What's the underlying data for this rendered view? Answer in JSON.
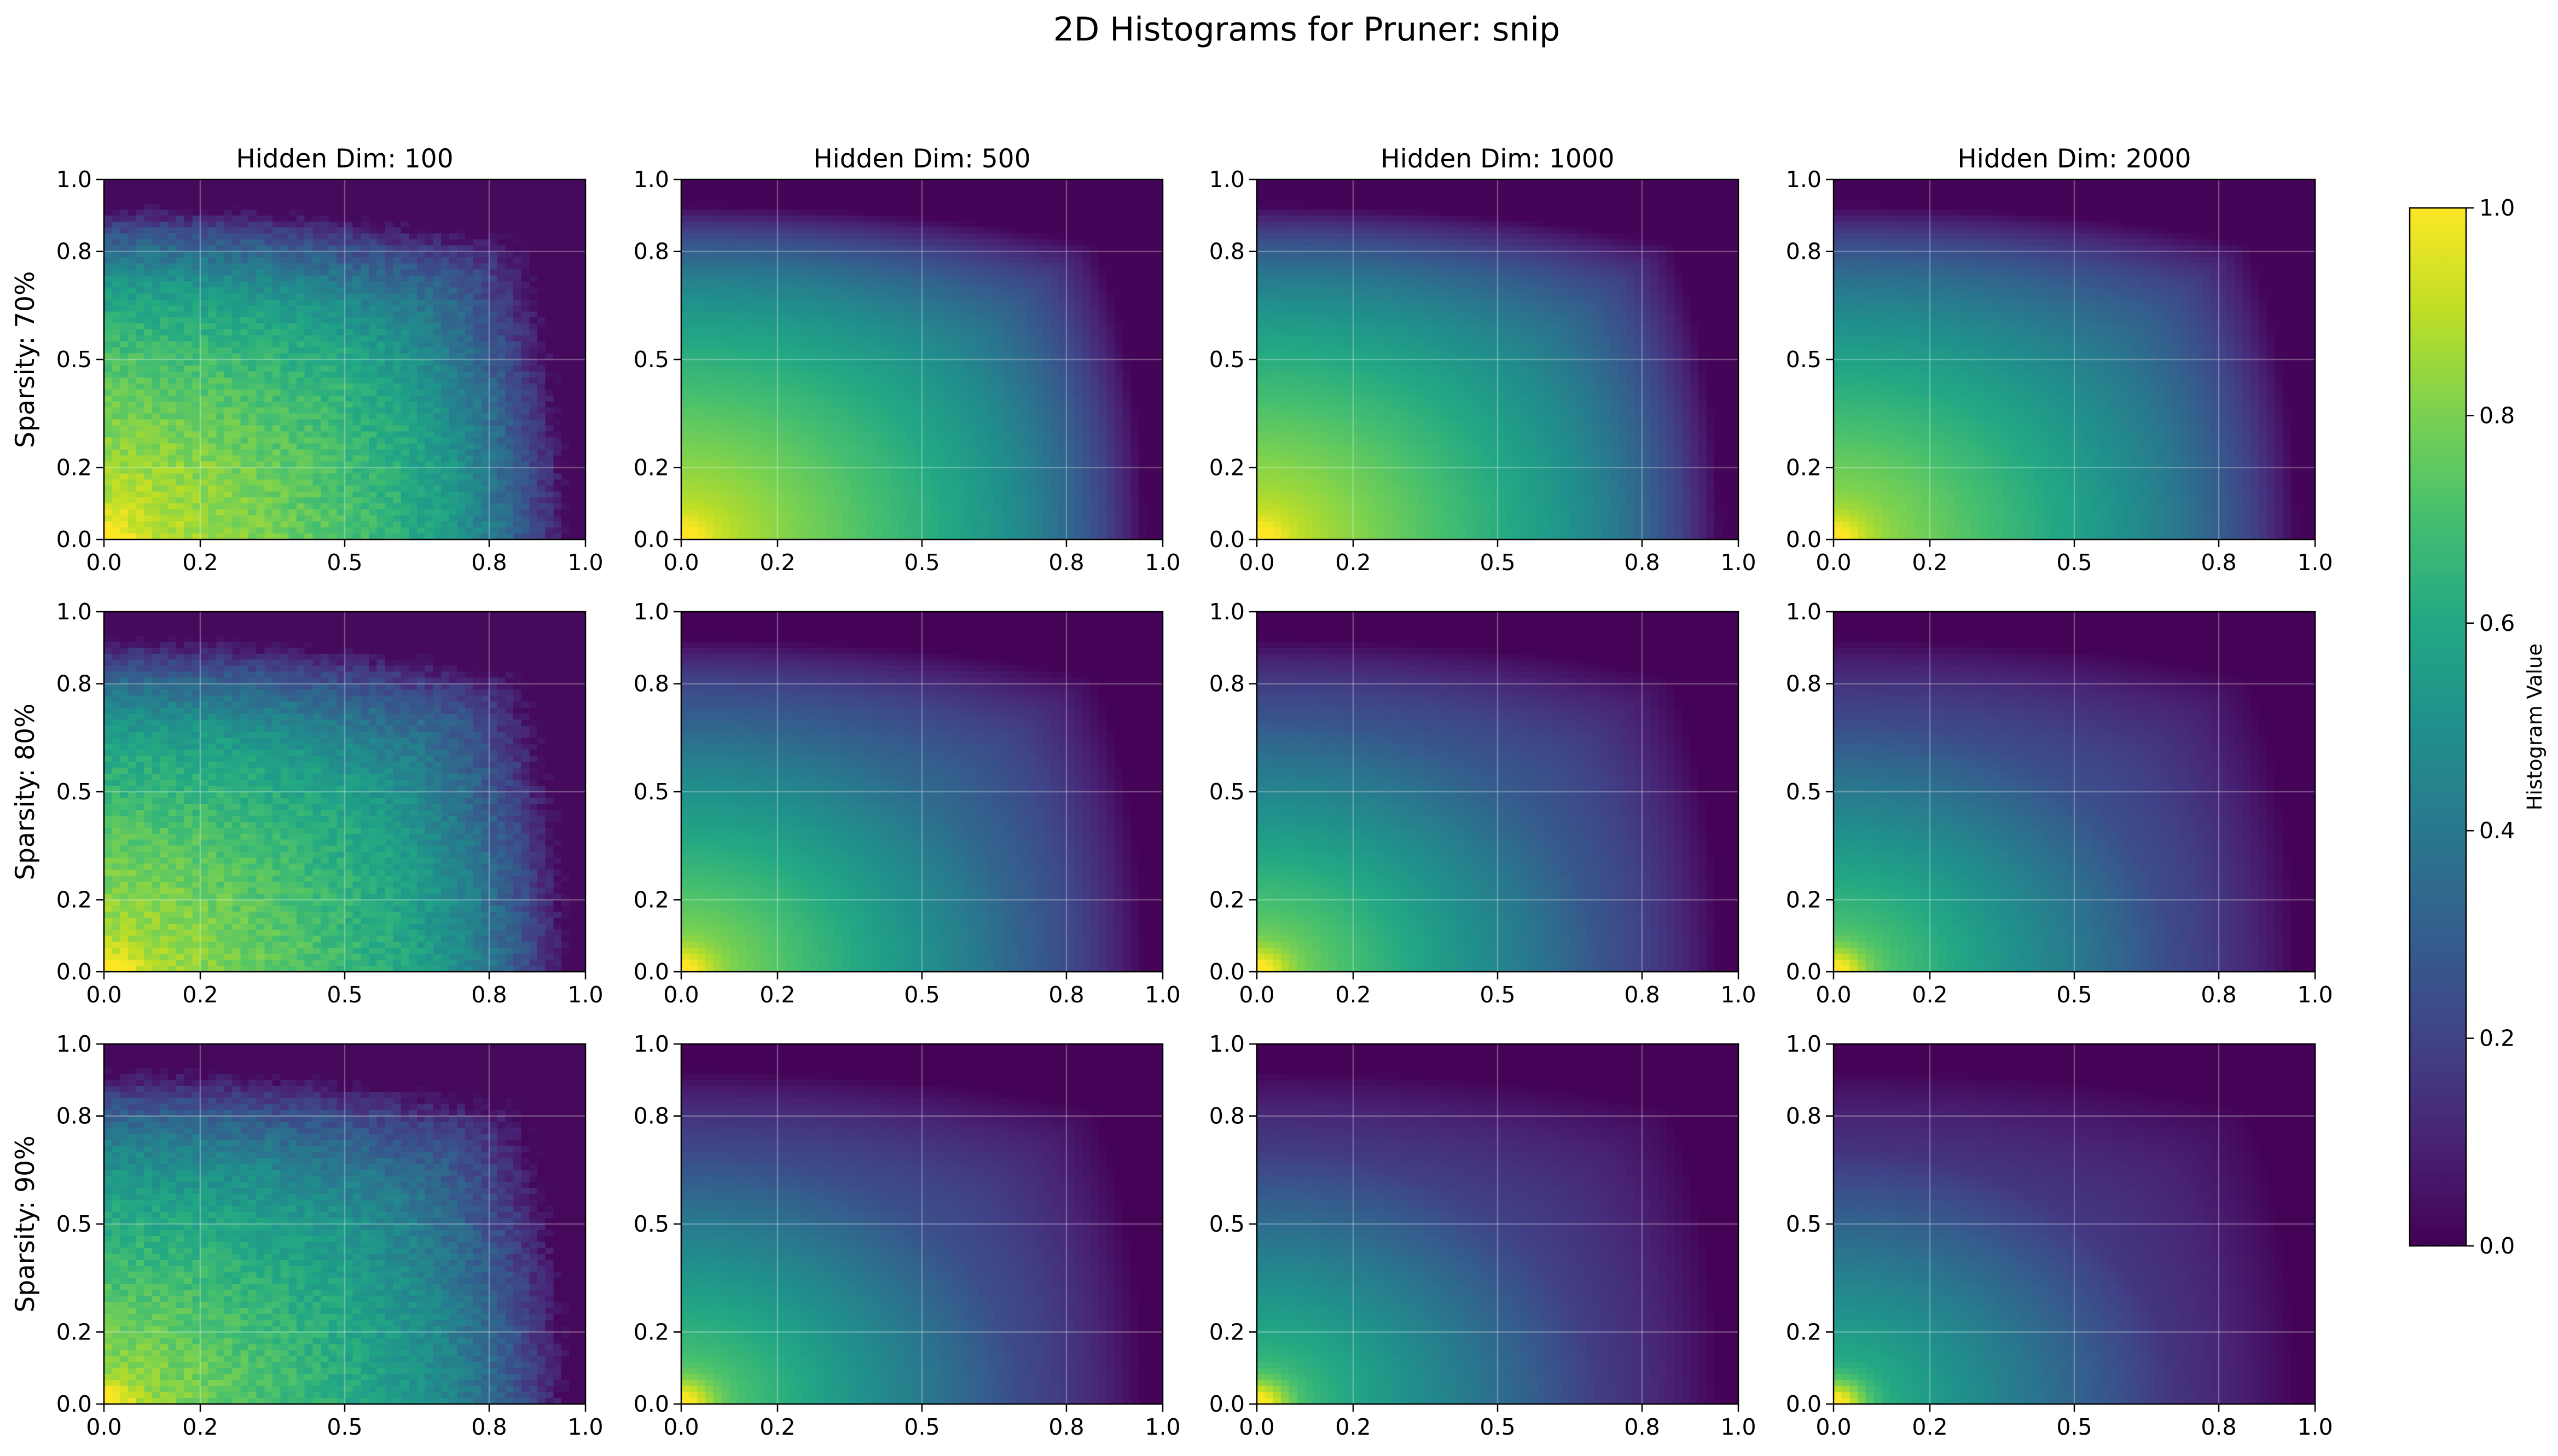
{
  "chart_data": {
    "type": "heatmap",
    "title": "2D Histograms for Pruner: snip",
    "column_titles": [
      "Hidden Dim: 100",
      "Hidden Dim: 500",
      "Hidden Dim: 1000",
      "Hidden Dim: 2000"
    ],
    "row_labels": [
      "Sparsity: 70%",
      "Sparsity: 80%",
      "Sparsity: 90%"
    ],
    "hidden_dims": [
      100,
      500,
      1000,
      2000
    ],
    "sparsities": [
      70,
      80,
      90
    ],
    "xlim": [
      0,
      1
    ],
    "ylim": [
      0,
      1
    ],
    "x_ticks": [
      "0.0",
      "0.2",
      "0.5",
      "0.8",
      "1.0"
    ],
    "y_ticks": [
      "0.0",
      "0.2",
      "0.5",
      "0.8",
      "1.0"
    ],
    "grid": true,
    "colormap": "viridis",
    "colorbar": {
      "label": "Histogram Value",
      "range": [
        0,
        1
      ],
      "ticks": [
        "0.0",
        "0.2",
        "0.4",
        "0.6",
        "0.8",
        "1.0"
      ]
    },
    "bins": 60,
    "panels": [
      {
        "sparsity": 70,
        "hidden_dim": 100,
        "value_at_origin": 0.95,
        "value_mid": 0.62,
        "value_far_corner": 0.05,
        "noise": 0.05
      },
      {
        "sparsity": 70,
        "hidden_dim": 500,
        "value_at_origin": 0.95,
        "value_mid": 0.52,
        "value_far_corner": 0.02,
        "noise": 0.0
      },
      {
        "sparsity": 70,
        "hidden_dim": 1000,
        "value_at_origin": 0.95,
        "value_mid": 0.5,
        "value_far_corner": 0.02,
        "noise": 0.0
      },
      {
        "sparsity": 70,
        "hidden_dim": 2000,
        "value_at_origin": 0.9,
        "value_mid": 0.45,
        "value_far_corner": 0.02,
        "noise": 0.0
      },
      {
        "sparsity": 80,
        "hidden_dim": 100,
        "value_at_origin": 0.92,
        "value_mid": 0.58,
        "value_far_corner": 0.05,
        "noise": 0.05
      },
      {
        "sparsity": 80,
        "hidden_dim": 500,
        "value_at_origin": 0.88,
        "value_mid": 0.35,
        "value_far_corner": 0.01,
        "noise": 0.0
      },
      {
        "sparsity": 80,
        "hidden_dim": 1000,
        "value_at_origin": 0.85,
        "value_mid": 0.3,
        "value_far_corner": 0.01,
        "noise": 0.0
      },
      {
        "sparsity": 80,
        "hidden_dim": 2000,
        "value_at_origin": 0.8,
        "value_mid": 0.25,
        "value_far_corner": 0.01,
        "noise": 0.0
      },
      {
        "sparsity": 90,
        "hidden_dim": 100,
        "value_at_origin": 0.88,
        "value_mid": 0.52,
        "value_far_corner": 0.04,
        "noise": 0.05
      },
      {
        "sparsity": 90,
        "hidden_dim": 500,
        "value_at_origin": 0.8,
        "value_mid": 0.25,
        "value_far_corner": 0.01,
        "noise": 0.0
      },
      {
        "sparsity": 90,
        "hidden_dim": 1000,
        "value_at_origin": 0.75,
        "value_mid": 0.2,
        "value_far_corner": 0.01,
        "noise": 0.0
      },
      {
        "sparsity": 90,
        "hidden_dim": 2000,
        "value_at_origin": 0.7,
        "value_mid": 0.17,
        "value_far_corner": 0.01,
        "noise": 0.0
      }
    ]
  }
}
